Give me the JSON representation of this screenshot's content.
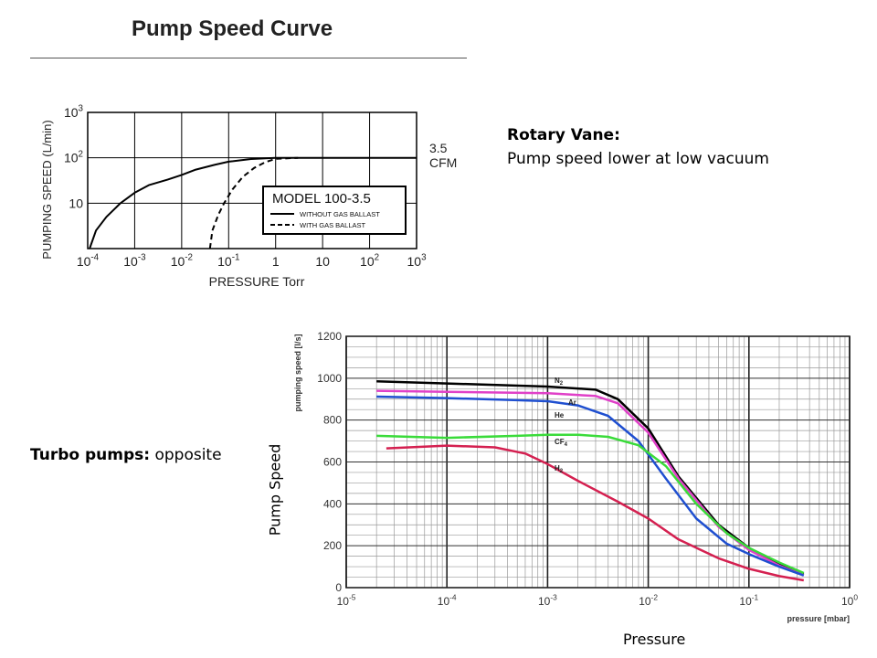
{
  "slide": {
    "title": "Pump Speed Curve",
    "rotary_heading": "Rotary Vane:",
    "rotary_text": "Pump speed lower at low vacuum",
    "turbo_heading": "Turbo pumps:",
    "turbo_text": " opposite",
    "y_caption": "Pump Speed",
    "x_caption": "Pressure"
  },
  "chart_data": [
    {
      "type": "line",
      "xlabel": "PRESSURE Torr",
      "ylabel": "PUMPING SPEED (L/min)",
      "x_scale": "log",
      "y_scale": "log",
      "xlim": [
        0.0001,
        1000
      ],
      "ylim": [
        1,
        1000
      ],
      "x_tick_labels": [
        {
          "base": "10",
          "exp": "-4",
          "v": 0.0001
        },
        {
          "base": "10",
          "exp": "-3",
          "v": 0.001
        },
        {
          "base": "10",
          "exp": "-2",
          "v": 0.01
        },
        {
          "base": "10",
          "exp": "-1",
          "v": 0.1
        },
        {
          "base": "1",
          "exp": "",
          "v": 1
        },
        {
          "base": "10",
          "exp": "",
          "v": 10
        },
        {
          "base": "10",
          "exp": "2",
          "v": 100
        },
        {
          "base": "10",
          "exp": "3",
          "v": 1000
        }
      ],
      "y_tick_labels": [
        {
          "base": "10",
          "exp": "",
          "v": 10
        },
        {
          "base": "10",
          "exp": "2",
          "v": 100
        },
        {
          "base": "10",
          "exp": "3",
          "v": 1000
        }
      ],
      "right_label_lines": [
        "3.5",
        "CFM"
      ],
      "grid": true,
      "legend": {
        "title": "MODEL 100-3.5",
        "position": "inside-right",
        "entries": [
          {
            "label": "WITHOUT GAS BALLAST",
            "style": "solid"
          },
          {
            "label": "WITH GAS BALLAST",
            "style": "dashed"
          }
        ]
      },
      "series": [
        {
          "name": "WITHOUT GAS BALLAST",
          "style": "solid",
          "color": "#000000",
          "x": [
            0.00011,
            0.00015,
            0.00025,
            0.0005,
            0.001,
            0.002,
            0.005,
            0.01,
            0.02,
            0.05,
            0.1,
            0.3,
            1,
            10,
            100,
            1000
          ],
          "y": [
            1,
            2.5,
            5,
            10,
            17,
            25,
            33,
            42,
            55,
            70,
            82,
            94,
            100,
            100,
            100,
            100
          ]
        },
        {
          "name": "WITH GAS BALLAST",
          "style": "dashed",
          "color": "#000000",
          "x": [
            0.04,
            0.045,
            0.06,
            0.08,
            0.12,
            0.2,
            0.35,
            0.6,
            1,
            3
          ],
          "y": [
            1,
            2.5,
            5.5,
            10,
            20,
            38,
            60,
            80,
            95,
            100
          ]
        }
      ]
    },
    {
      "type": "line",
      "xlabel": "pressure [mbar]",
      "ylabel": "pumping speed [l/s]",
      "x_scale": "log",
      "xlim": [
        1e-05,
        1
      ],
      "ylim": [
        0,
        1200
      ],
      "y_ticks": [
        0,
        200,
        400,
        600,
        800,
        1000,
        1200
      ],
      "x_tick_labels": [
        {
          "base": "10",
          "exp": "-5",
          "v": 1e-05
        },
        {
          "base": "10",
          "exp": "-4",
          "v": 0.0001
        },
        {
          "base": "10",
          "exp": "-3",
          "v": 0.001
        },
        {
          "base": "10",
          "exp": "-2",
          "v": 0.01
        },
        {
          "base": "10",
          "exp": "-1",
          "v": 0.1
        },
        {
          "base": "10",
          "exp": "0",
          "v": 1
        }
      ],
      "grid": true,
      "series": [
        {
          "name": "N2",
          "label_base": "N",
          "label_sub": "2",
          "color": "#000000",
          "x": [
            2e-05,
            0.0001,
            0.001,
            0.003,
            0.005,
            0.01,
            0.02,
            0.05,
            0.1,
            0.2,
            0.35
          ],
          "y": [
            985,
            975,
            960,
            945,
            900,
            760,
            530,
            300,
            190,
            110,
            65
          ]
        },
        {
          "name": "Ar",
          "label_base": "Ar",
          "label_sub": "",
          "color": "#e040c8",
          "x": [
            2e-05,
            0.0001,
            0.001,
            0.003,
            0.005,
            0.01,
            0.02,
            0.05,
            0.1,
            0.2,
            0.35
          ],
          "y": [
            940,
            935,
            928,
            915,
            880,
            740,
            520,
            290,
            180,
            105,
            60
          ]
        },
        {
          "name": "He",
          "label_base": "He",
          "label_sub": "",
          "color": "#1f4fd0",
          "x": [
            2e-05,
            0.0001,
            0.0005,
            0.001,
            0.002,
            0.004,
            0.008,
            0.015,
            0.03,
            0.06,
            0.1,
            0.2,
            0.35
          ],
          "y": [
            912,
            905,
            895,
            890,
            870,
            820,
            700,
            520,
            330,
            210,
            160,
            100,
            58
          ]
        },
        {
          "name": "CF4",
          "label_base": "CF",
          "label_sub": "4",
          "color": "#3adb3a",
          "x": [
            2e-05,
            0.0001,
            0.0005,
            0.001,
            0.002,
            0.004,
            0.008,
            0.015,
            0.03,
            0.06,
            0.1,
            0.2,
            0.35
          ],
          "y": [
            725,
            715,
            725,
            730,
            730,
            720,
            680,
            580,
            400,
            260,
            190,
            120,
            70
          ]
        },
        {
          "name": "H2",
          "label_base": "H",
          "label_sub": "2",
          "color": "#d42050",
          "x": [
            2.5e-05,
            0.0001,
            0.0003,
            0.0006,
            0.001,
            0.002,
            0.005,
            0.01,
            0.02,
            0.05,
            0.1,
            0.2,
            0.35
          ],
          "y": [
            665,
            678,
            670,
            640,
            590,
            510,
            410,
            330,
            230,
            140,
            90,
            55,
            35
          ]
        }
      ]
    }
  ]
}
